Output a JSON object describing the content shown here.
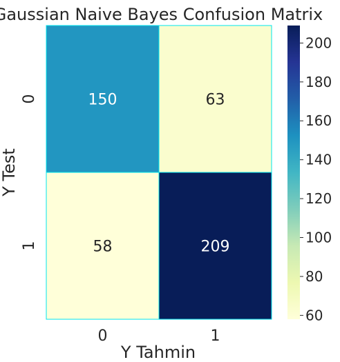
{
  "chart_data": {
    "type": "heatmap",
    "title": "Gaussian Naive Bayes Confusion Matrix",
    "xlabel": "Y Tahmin",
    "ylabel": "Y Test",
    "x_categories": [
      "0",
      "1"
    ],
    "y_categories": [
      "0",
      "1"
    ],
    "values": [
      [
        150,
        63
      ],
      [
        58,
        209
      ]
    ],
    "annotations": [
      "150",
      "63",
      "58",
      "209"
    ],
    "colormap": "YlGnBu",
    "color_range": [
      58,
      209
    ],
    "colorbar_ticks": [
      60,
      80,
      100,
      120,
      140,
      160,
      180,
      200
    ],
    "cell_border_color": "#00e5ee"
  }
}
